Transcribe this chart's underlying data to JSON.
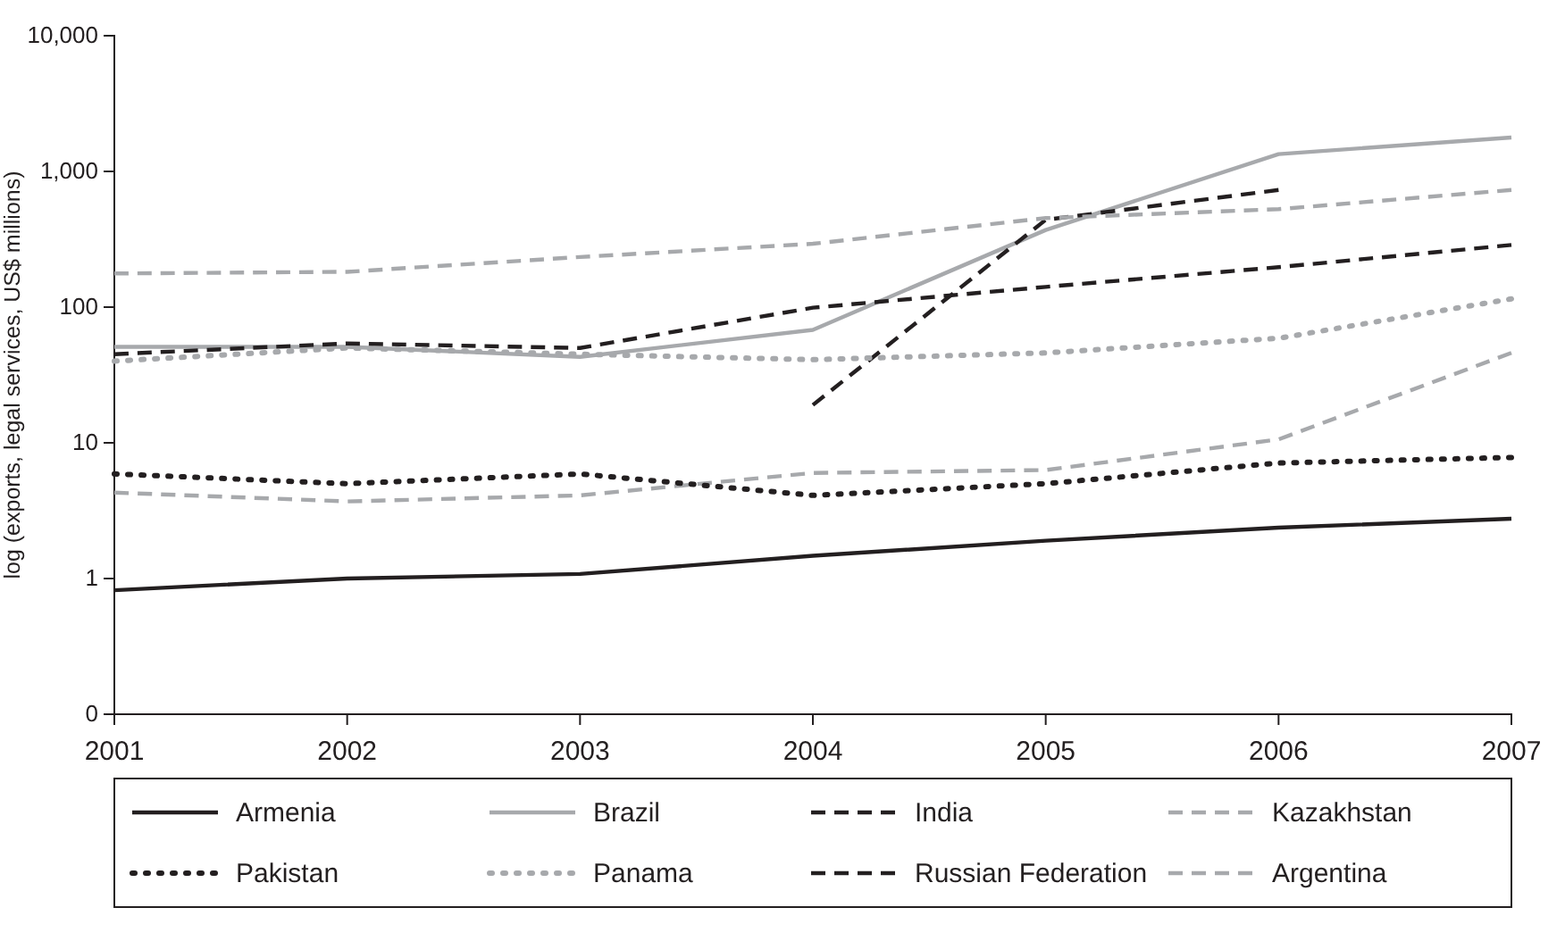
{
  "chart_data": {
    "type": "line",
    "ylabel": "log (exports, legal services, US$ millions)",
    "log": true,
    "grid": false,
    "legend": "bottom",
    "marker": "none",
    "x": [
      2001,
      2002,
      2003,
      2004,
      2005,
      2006,
      2007
    ],
    "xlim": [
      2001,
      2007
    ],
    "xticks": [
      2001,
      2002,
      2003,
      2004,
      2005,
      2006,
      2007
    ],
    "ylim": [
      0.1,
      10000
    ],
    "yticks": [
      {
        "value": 0.1,
        "label": "0"
      },
      {
        "value": 1,
        "label": "1"
      },
      {
        "value": 10,
        "label": "10"
      },
      {
        "value": 100,
        "label": "100"
      },
      {
        "value": 1000,
        "label": "1,000"
      },
      {
        "value": 10000,
        "label": "10,000"
      }
    ],
    "series": [
      {
        "name": "Armenia",
        "color": "#231f20",
        "line_style": "solid",
        "values": [
          0.82,
          1.0,
          1.08,
          1.47,
          1.9,
          2.37,
          2.76
        ]
      },
      {
        "name": "Brazil",
        "color": "#a7a9ac",
        "line_style": "solid",
        "values": [
          51,
          51,
          43,
          68,
          370,
          1340,
          1780
        ]
      },
      {
        "name": "India",
        "color": "#231f20",
        "line_style": "dashed",
        "values": [
          null,
          null,
          null,
          19,
          440,
          730,
          null
        ]
      },
      {
        "name": "Kazakhstan",
        "color": "#a7a9ac",
        "line_style": "dashed",
        "values": [
          4.3,
          3.7,
          4.1,
          6.0,
          6.3,
          10.6,
          46
        ]
      },
      {
        "name": "Pakistan",
        "color": "#231f20",
        "line_style": "dotted",
        "values": [
          5.9,
          5.0,
          5.9,
          4.1,
          5.0,
          7.1,
          7.8
        ]
      },
      {
        "name": "Panama",
        "color": "#a7a9ac",
        "line_style": "dotted",
        "values": [
          40,
          50,
          45,
          41,
          46,
          59,
          115
        ]
      },
      {
        "name": "Russian Federation",
        "color": "#231f20",
        "line_style": "dashed",
        "values": [
          45,
          54,
          50,
          99,
          141,
          197,
          287
        ]
      },
      {
        "name": "Argentina",
        "color": "#a7a9ac",
        "line_style": "dashed",
        "values": [
          177,
          182,
          234,
          293,
          453,
          527,
          730
        ]
      }
    ]
  }
}
